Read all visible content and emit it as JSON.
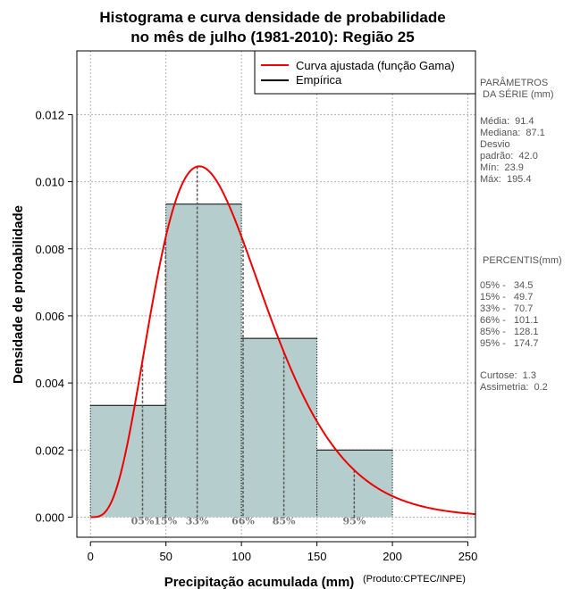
{
  "chart_data": {
    "type": "histogram",
    "title_line1": "Histograma e curva densidade de probabilidade",
    "title_line2": "no mês de julho (1981-2010): Região 25",
    "xlabel": "Precipitação acumulada (mm)",
    "ylabel": "Densidade de probabilidade",
    "credit": "(Produto:CPTEC/INPE)",
    "xlim": [
      -9,
      255
    ],
    "ylim": [
      -0.0006,
      0.0139
    ],
    "x_ticks": [
      0,
      50,
      100,
      150,
      200,
      250
    ],
    "y_ticks": [
      0.0,
      0.002,
      0.004,
      0.006,
      0.008,
      0.01,
      0.012
    ],
    "y_tick_labels": [
      "0.000",
      "0.002",
      "0.004",
      "0.006",
      "0.008",
      "0.010",
      "0.012"
    ],
    "bins": [
      {
        "from": 0,
        "to": 50,
        "density": 0.00333
      },
      {
        "from": 50,
        "to": 100,
        "density": 0.00933
      },
      {
        "from": 100,
        "to": 150,
        "density": 0.00533
      },
      {
        "from": 150,
        "to": 200,
        "density": 0.002
      }
    ],
    "curve": {
      "name": "Curva ajustada (função Gama)",
      "mean": 91.4,
      "sd": 42.0,
      "color": "#ee0000"
    },
    "legend": [
      {
        "label": "Curva ajustada (função Gama)",
        "color": "#ee0000"
      },
      {
        "label": "Empírica",
        "color": "#000000"
      }
    ],
    "percentile_marks": [
      {
        "label": "05%",
        "value": 34.5
      },
      {
        "label": "15%",
        "value": 49.7
      },
      {
        "label": "33%",
        "value": 70.7
      },
      {
        "label": "66%",
        "value": 101.1
      },
      {
        "label": "85%",
        "value": 128.1
      },
      {
        "label": "95%",
        "value": 174.7
      }
    ],
    "colors": {
      "bar_fill": "#b5cdcc",
      "bar_stroke": "#000000",
      "grid": "#b0b0b0",
      "pct_line": "#555555"
    }
  },
  "sidebar": {
    "params_title": "PARÂMETROS\n DA SÉRIE (mm)",
    "params_values": "Média:  91.4\nMediana:  87.1\nDesvio\npadrão:  42.0\nMín:  23.9\nMáx:  195.4",
    "percentis_title": " PERCENTIS(mm)",
    "percentis_values": "05% -   34.5\n15% -   49.7\n33% -   70.7\n66% -   101.1\n85% -   128.1\n95% -   174.7",
    "shape_values": "Curtose:  1.3\nAssimetria:  0.2"
  }
}
